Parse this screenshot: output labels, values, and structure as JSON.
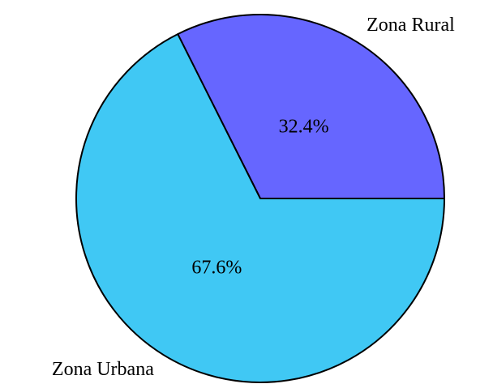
{
  "chart_data": {
    "type": "pie",
    "categories": [
      "Zona Rural",
      "Zona Urbana"
    ],
    "values": [
      32.4,
      67.6
    ],
    "value_labels": [
      "32.4%",
      "67.6%"
    ],
    "colors": [
      "#6666ff",
      "#40c8f4"
    ]
  }
}
